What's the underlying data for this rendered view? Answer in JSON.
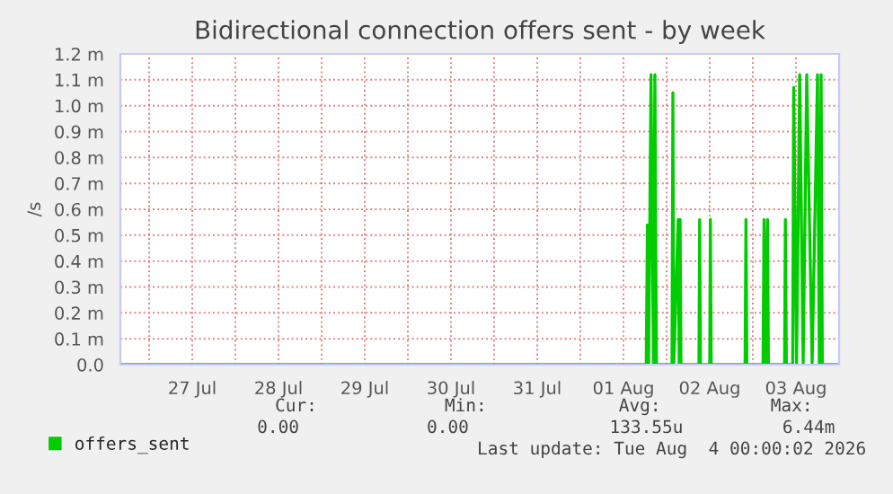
{
  "chart_data": {
    "type": "line",
    "title": "Bidirectional connection offers sent - by week",
    "ylabel": "/s",
    "xlim": [
      "2026-07-26T16:00",
      "2026-08-04T00:00"
    ],
    "xticks": [
      {
        "value": "2026-07-27T00:00",
        "label": null
      },
      {
        "value": "2026-07-27T12:00",
        "label": "27 Jul"
      },
      {
        "value": "2026-07-28T00:00",
        "label": null
      },
      {
        "value": "2026-07-28T12:00",
        "label": "28 Jul"
      },
      {
        "value": "2026-07-29T00:00",
        "label": null
      },
      {
        "value": "2026-07-29T12:00",
        "label": "29 Jul"
      },
      {
        "value": "2026-07-30T00:00",
        "label": null
      },
      {
        "value": "2026-07-30T12:00",
        "label": "30 Jul"
      },
      {
        "value": "2026-07-31T00:00",
        "label": null
      },
      {
        "value": "2026-07-31T12:00",
        "label": "31 Jul"
      },
      {
        "value": "2026-08-01T00:00",
        "label": null
      },
      {
        "value": "2026-08-01T12:00",
        "label": "01 Aug"
      },
      {
        "value": "2026-08-02T00:00",
        "label": null
      },
      {
        "value": "2026-08-02T12:00",
        "label": "02 Aug"
      },
      {
        "value": "2026-08-03T00:00",
        "label": null
      },
      {
        "value": "2026-08-03T12:00",
        "label": "03 Aug"
      }
    ],
    "ylim": [
      0,
      1.2
    ],
    "yticks": [
      {
        "value": 0,
        "label": "0.0"
      },
      {
        "value": 0.1,
        "label": "0.1 m"
      },
      {
        "value": 0.2,
        "label": "0.2 m"
      },
      {
        "value": 0.3,
        "label": "0.3 m"
      },
      {
        "value": 0.4,
        "label": "0.4 m"
      },
      {
        "value": 0.5,
        "label": "0.5 m"
      },
      {
        "value": 0.6,
        "label": "0.6 m"
      },
      {
        "value": 0.7,
        "label": "0.7 m"
      },
      {
        "value": 0.8,
        "label": "0.8 m"
      },
      {
        "value": 0.9,
        "label": "0.9 m"
      },
      {
        "value": 1.0,
        "label": "1.0 m"
      },
      {
        "value": 1.1,
        "label": "1.1 m"
      },
      {
        "value": 1.2,
        "label": "1.2 m"
      }
    ],
    "grid": true,
    "legend": "bottom",
    "series": [
      {
        "name": "offers_sent",
        "color": "#00cc00",
        "x": [
          "2026-07-26T16:00",
          "2026-08-01T18:20",
          "2026-08-01T18:40",
          "2026-08-01T19:00",
          "2026-08-01T19:40",
          "2026-08-01T20:20",
          "2026-08-01T20:45",
          "2026-08-01T21:10",
          "2026-08-02T01:30",
          "2026-08-02T01:45",
          "2026-08-02T02:00",
          "2026-08-02T03:14",
          "2026-08-02T03:30",
          "2026-08-02T03:45",
          "2026-08-02T04:00",
          "2026-08-02T09:00",
          "2026-08-02T09:12",
          "2026-08-02T09:25",
          "2026-08-02T12:00",
          "2026-08-02T12:11",
          "2026-08-02T12:25",
          "2026-08-02T21:50",
          "2026-08-02T22:05",
          "2026-08-02T22:20",
          "2026-08-03T02:50",
          "2026-08-03T03:07",
          "2026-08-03T03:35",
          "2026-08-03T04:05",
          "2026-08-03T04:20",
          "2026-08-03T08:50",
          "2026-08-03T09:03",
          "2026-08-03T09:20",
          "2026-08-03T11:05",
          "2026-08-03T11:22",
          "2026-08-03T12:10",
          "2026-08-03T13:02",
          "2026-08-03T14:00",
          "2026-08-03T15:00",
          "2026-08-03T16:30",
          "2026-08-03T18:00",
          "2026-08-03T18:30",
          "2026-08-03T19:00",
          "2026-08-03T19:20",
          "2026-08-04T00:00"
        ],
        "values": [
          0,
          0,
          0.54,
          0,
          1.12,
          0,
          1.12,
          0,
          0,
          1.05,
          0,
          0.56,
          0,
          0.56,
          0,
          0,
          0.56,
          0,
          0,
          0.56,
          0,
          0,
          0.56,
          0,
          0,
          0.56,
          0,
          0.56,
          0,
          0,
          0.56,
          0,
          0,
          1.07,
          0,
          1.12,
          0,
          1.12,
          0,
          1.12,
          0,
          1.12,
          0,
          0
        ]
      }
    ],
    "annotations": [
      "Cur:",
      "Min:",
      "Avg:",
      "Max:",
      "0.00",
      "0.00",
      "133.55u",
      "6.44m",
      "Last update: Tue Aug  4 00:00:02 2026"
    ]
  }
}
